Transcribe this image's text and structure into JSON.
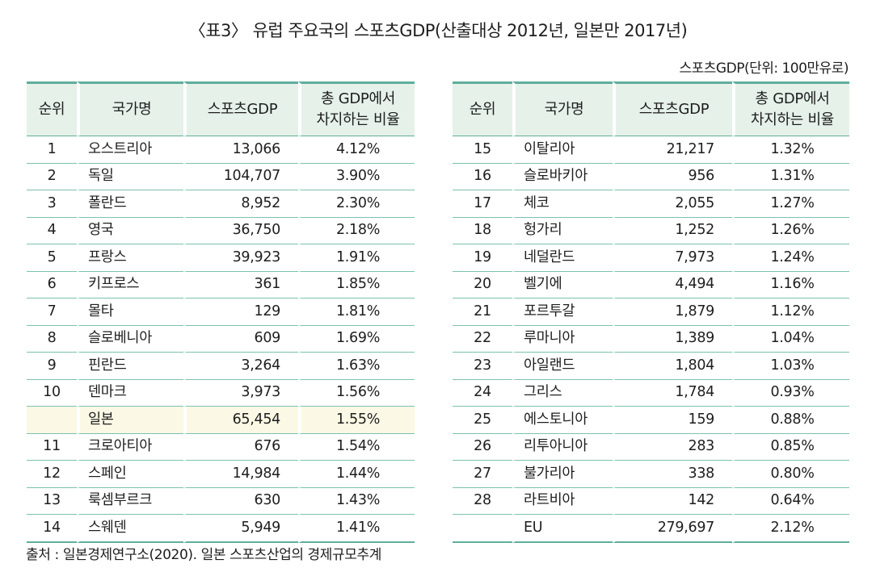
{
  "title": "〈표3〉 유럽 주요국의 스포츠GDP(산출대상 2012년, 일본만 2017년)",
  "unit": "스포츠GDP(단위: 100만유로)",
  "headers": {
    "rank": "순위",
    "country": "국가명",
    "gdp": "스포츠GDP",
    "share_line1": "총 GDP에서",
    "share_line2": "차지하는 비율"
  },
  "left_rows": [
    {
      "rank": "1",
      "country": "오스트리아",
      "gdp": "13,066",
      "share": "4.12%"
    },
    {
      "rank": "2",
      "country": "독일",
      "gdp": "104,707",
      "share": "3.90%"
    },
    {
      "rank": "3",
      "country": "폴란드",
      "gdp": "8,952",
      "share": "2.30%"
    },
    {
      "rank": "4",
      "country": "영국",
      "gdp": "36,750",
      "share": "2.18%"
    },
    {
      "rank": "5",
      "country": "프랑스",
      "gdp": "39,923",
      "share": "1.91%"
    },
    {
      "rank": "6",
      "country": "키프로스",
      "gdp": "361",
      "share": "1.85%"
    },
    {
      "rank": "7",
      "country": "몰타",
      "gdp": "129",
      "share": "1.81%"
    },
    {
      "rank": "8",
      "country": "슬로베니아",
      "gdp": "609",
      "share": "1.69%"
    },
    {
      "rank": "9",
      "country": "핀란드",
      "gdp": "3,264",
      "share": "1.63%"
    },
    {
      "rank": "10",
      "country": "덴마크",
      "gdp": "3,973",
      "share": "1.56%"
    },
    {
      "rank": "",
      "country": "일본",
      "gdp": "65,454",
      "share": "1.55%",
      "highlight": true
    },
    {
      "rank": "11",
      "country": "크로아티아",
      "gdp": "676",
      "share": "1.54%"
    },
    {
      "rank": "12",
      "country": "스페인",
      "gdp": "14,984",
      "share": "1.44%"
    },
    {
      "rank": "13",
      "country": "룩셈부르크",
      "gdp": "630",
      "share": "1.43%"
    },
    {
      "rank": "14",
      "country": "스웨덴",
      "gdp": "5,949",
      "share": "1.41%"
    }
  ],
  "right_rows": [
    {
      "rank": "15",
      "country": "이탈리아",
      "gdp": "21,217",
      "share": "1.32%"
    },
    {
      "rank": "16",
      "country": "슬로바키아",
      "gdp": "956",
      "share": "1.31%"
    },
    {
      "rank": "17",
      "country": "체코",
      "gdp": "2,055",
      "share": "1.27%"
    },
    {
      "rank": "18",
      "country": "헝가리",
      "gdp": "1,252",
      "share": "1.26%"
    },
    {
      "rank": "19",
      "country": "네덜란드",
      "gdp": "7,973",
      "share": "1.24%"
    },
    {
      "rank": "20",
      "country": "벨기에",
      "gdp": "4,494",
      "share": "1.16%"
    },
    {
      "rank": "21",
      "country": "포르투갈",
      "gdp": "1,879",
      "share": "1.12%"
    },
    {
      "rank": "22",
      "country": "루마니아",
      "gdp": "1,389",
      "share": "1.04%"
    },
    {
      "rank": "23",
      "country": "아일랜드",
      "gdp": "1,804",
      "share": "1.03%"
    },
    {
      "rank": "24",
      "country": "그리스",
      "gdp": "1,784",
      "share": "0.93%"
    },
    {
      "rank": "25",
      "country": "에스토니아",
      "gdp": "159",
      "share": "0.88%"
    },
    {
      "rank": "26",
      "country": "리투아니아",
      "gdp": "283",
      "share": "0.85%"
    },
    {
      "rank": "27",
      "country": "불가리아",
      "gdp": "338",
      "share": "0.80%"
    },
    {
      "rank": "28",
      "country": "라트비아",
      "gdp": "142",
      "share": "0.64%"
    },
    {
      "rank": "",
      "country": "EU",
      "gdp": "279,697",
      "share": "2.12%"
    }
  ],
  "source": "출처 : 일본경제연구소(2020). 일본 스포츠산업의 경제규모추계",
  "colors": {
    "header_bg": "#e5f1e9",
    "rule": "#5fae9c",
    "highlight_bg": "#fbf8e5"
  }
}
